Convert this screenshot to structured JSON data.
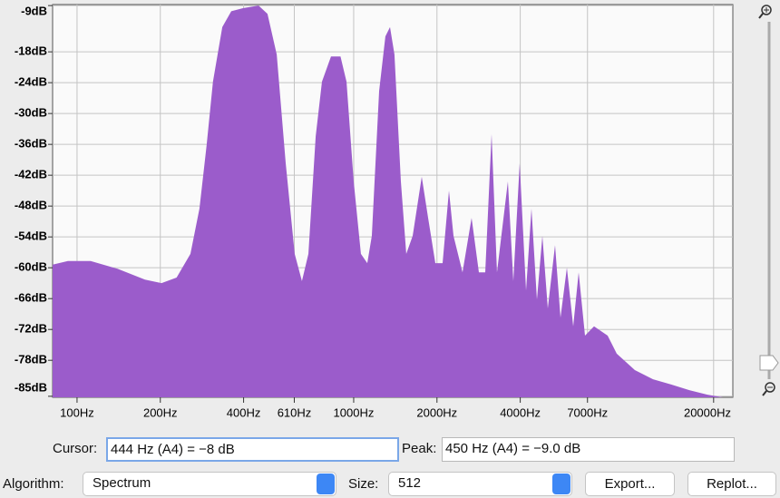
{
  "chart_data": {
    "type": "area",
    "color": "#9b5ccb",
    "x_scale": "log",
    "grid": true,
    "xlim": [
      81.6,
      23470
    ],
    "ylim": [
      -85.2,
      -8.8
    ],
    "xticks": [
      {
        "value": 100,
        "label": "100Hz"
      },
      {
        "value": 200,
        "label": "200Hz"
      },
      {
        "value": 400,
        "label": "400Hz"
      },
      {
        "value": 610,
        "label": "610Hz"
      },
      {
        "value": 1000,
        "label": "1000Hz"
      },
      {
        "value": 2000,
        "label": "2000Hz"
      },
      {
        "value": 4000,
        "label": "4000Hz"
      },
      {
        "value": 7000,
        "label": "7000Hz"
      },
      {
        "value": 20000,
        "label": "20000Hz"
      }
    ],
    "yticks": [
      {
        "value": -9,
        "label": "-9dB"
      },
      {
        "value": -18,
        "label": "-18dB"
      },
      {
        "value": -24,
        "label": "-24dB"
      },
      {
        "value": -30,
        "label": "-30dB"
      },
      {
        "value": -36,
        "label": "-36dB"
      },
      {
        "value": -42,
        "label": "-42dB"
      },
      {
        "value": -48,
        "label": "-48dB"
      },
      {
        "value": -54,
        "label": "-54dB"
      },
      {
        "value": -60,
        "label": "-60dB"
      },
      {
        "value": -66,
        "label": "-66dB"
      },
      {
        "value": -72,
        "label": "-72dB"
      },
      {
        "value": -78,
        "label": "-78dB"
      },
      {
        "value": -85,
        "label": "-85dB"
      }
    ],
    "x": [
      81.6,
      92.7,
      112,
      140,
      176,
      202,
      229,
      257,
      277,
      294,
      310,
      335,
      361,
      398,
      453,
      488,
      527,
      568,
      612,
      650,
      686,
      729,
      768,
      828,
      896,
      942,
      1000,
      1062,
      1120,
      1163,
      1236,
      1302,
      1353,
      1404,
      1481,
      1549,
      1634,
      1762,
      1858,
      1973,
      2096,
      2210,
      2295,
      2474,
      2668,
      2835,
      2989,
      3151,
      3296,
      3609,
      3776,
      3981,
      4198,
      4392,
      4596,
      4809,
      5031,
      5344,
      5592,
      5897,
      6216,
      6504,
      6857,
      7393,
      8279,
      8929,
      10385,
      12080,
      14050,
      16340,
      19000,
      21600
    ],
    "values": [
      -59.4,
      -58.7,
      -58.7,
      -60.2,
      -62.3,
      -63.0,
      -61.9,
      -57.3,
      -48.5,
      -36.2,
      -23.8,
      -13.2,
      -10.1,
      -9.5,
      -9.0,
      -10.6,
      -18.5,
      -39.7,
      -57.3,
      -62.6,
      -57.3,
      -34.4,
      -23.8,
      -18.9,
      -18.9,
      -23.8,
      -43.2,
      -57.3,
      -59.1,
      -53.8,
      -25.6,
      -15.0,
      -13.2,
      -18.5,
      -43.2,
      -57.3,
      -53.8,
      -42.3,
      -50.3,
      -59.1,
      -59.1,
      -45.0,
      -53.8,
      -60.9,
      -50.3,
      -60.9,
      -60.9,
      -34.0,
      -60.9,
      -43.2,
      -62.6,
      -39.7,
      -64.4,
      -48.5,
      -66.2,
      -53.8,
      -67.9,
      -55.6,
      -69.7,
      -60.0,
      -71.4,
      -60.9,
      -73.2,
      -71.4,
      -73.2,
      -76.7,
      -79.9,
      -81.7,
      -82.7,
      -83.8,
      -84.7,
      -85.2
    ]
  },
  "controls": {
    "cursor_label": "Cursor:",
    "cursor_value": "444 Hz (A4) = −8 dB",
    "peak_label": "Peak:",
    "peak_value": "450 Hz (A4) = −9.0 dB",
    "algorithm_label": "Algorithm:",
    "algorithm_value": "Spectrum",
    "size_label": "Size:",
    "size_value": "512",
    "export_button": "Export...",
    "replot_button": "Replot..."
  }
}
